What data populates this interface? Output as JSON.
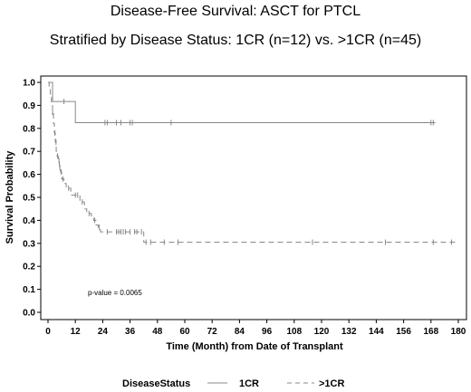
{
  "chart_data": {
    "type": "line",
    "title": "Disease-Free Survival: ASCT for PTCL",
    "subtitle": "Stratified by Disease Status: 1CR (n=12) vs. >1CR (n=45)",
    "xlabel": "Time (Month) from Date of Transplant",
    "ylabel": "Survival Probability",
    "xlim": [
      0,
      180
    ],
    "ylim": [
      0,
      1
    ],
    "x_ticks": [
      "0",
      "12",
      "24",
      "36",
      "48",
      "60",
      "72",
      "84",
      "96",
      "108",
      "120",
      "132",
      "144",
      "156",
      "168",
      "180"
    ],
    "y_ticks": [
      "0.0",
      "0.1",
      "0.2",
      "0.3",
      "0.4",
      "0.5",
      "0.6",
      "0.7",
      "0.8",
      "0.9",
      "1.0"
    ],
    "legend_title": "DiseaseStatus",
    "legend_position": "bottom",
    "annotation": "p-value = 0.0065",
    "series": [
      {
        "name": "1CR",
        "style": "solid",
        "color": "#888888",
        "steps": [
          [
            0,
            1.0
          ],
          [
            2,
            0.917
          ],
          [
            12,
            0.825
          ],
          [
            170,
            0.825
          ]
        ],
        "censor": [
          7,
          25,
          26,
          30,
          32,
          36,
          37,
          54,
          168,
          169
        ]
      },
      {
        "name": ">1CR",
        "style": "dashed",
        "color": "#888888",
        "steps": [
          [
            0,
            1.0
          ],
          [
            0.5,
            0.98
          ],
          [
            1.0,
            0.95
          ],
          [
            1.5,
            0.91
          ],
          [
            2.0,
            0.87
          ],
          [
            2.4,
            0.82
          ],
          [
            2.8,
            0.78
          ],
          [
            3.2,
            0.74
          ],
          [
            3.6,
            0.7
          ],
          [
            4.0,
            0.68
          ],
          [
            4.5,
            0.66
          ],
          [
            5.0,
            0.63
          ],
          [
            5.5,
            0.61
          ],
          [
            6.0,
            0.58
          ],
          [
            7.0,
            0.56
          ],
          [
            8.0,
            0.54
          ],
          [
            10.0,
            0.51
          ],
          [
            14.0,
            0.48
          ],
          [
            16.0,
            0.45
          ],
          [
            17.0,
            0.43
          ],
          [
            19.0,
            0.42
          ],
          [
            20.0,
            0.4
          ],
          [
            21.0,
            0.38
          ],
          [
            22.0,
            0.37
          ],
          [
            23.0,
            0.35
          ],
          [
            42.0,
            0.305
          ],
          [
            179,
            0.305
          ]
        ],
        "censor": [
          2,
          3,
          3.5,
          4.2,
          4.8,
          5.2,
          5.8,
          6.5,
          9,
          12,
          13,
          15,
          18,
          20.5,
          22.5,
          26,
          30,
          31,
          32,
          33,
          34,
          36,
          38,
          39,
          41,
          43,
          45,
          51,
          57,
          116,
          148,
          169,
          177
        ]
      }
    ]
  }
}
